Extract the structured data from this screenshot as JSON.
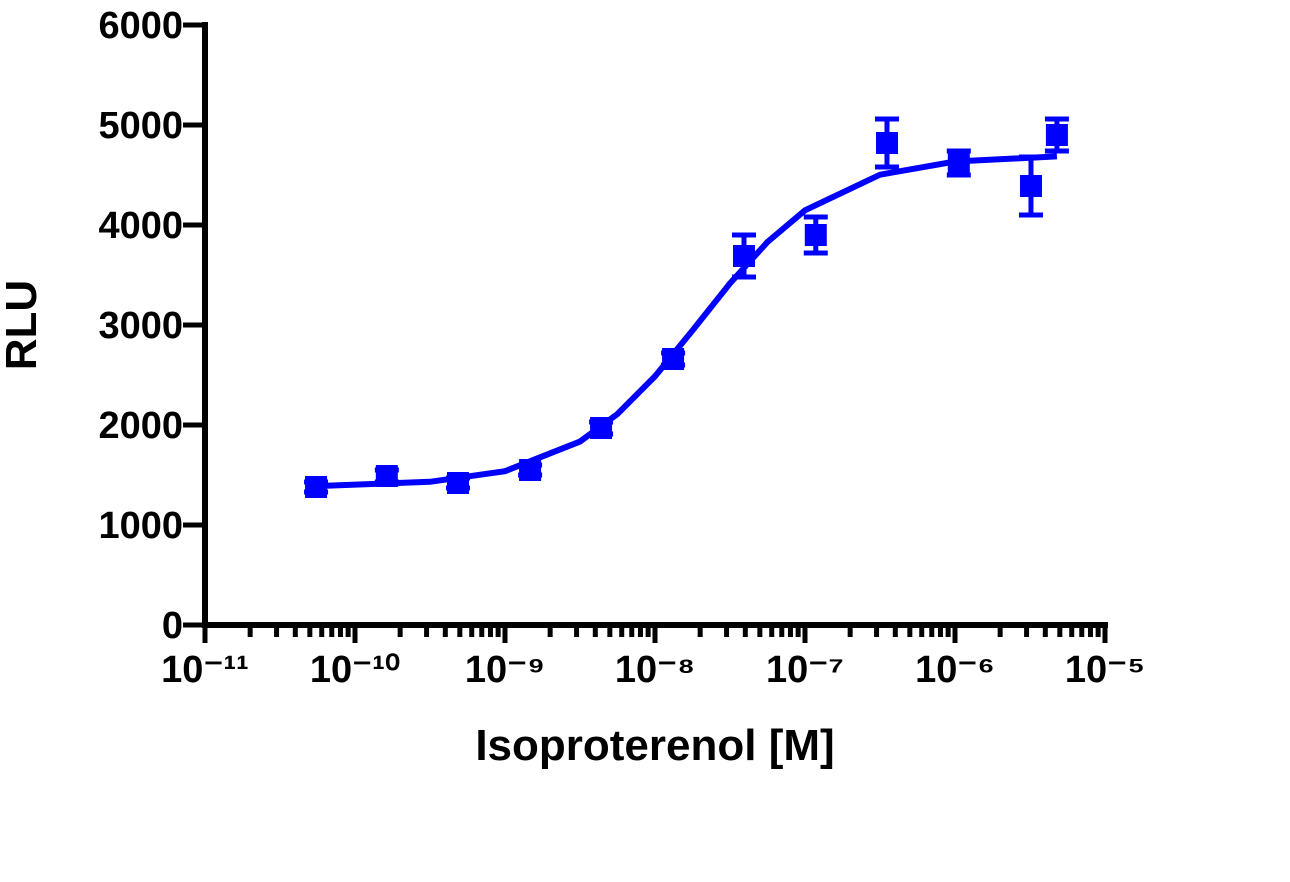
{
  "chart_data": {
    "type": "scatter",
    "x_label": "Isoproterenol [M]",
    "y_label": "RLU",
    "xscale": "log",
    "xlim": [
      1e-11,
      1e-05
    ],
    "xticks": [
      {
        "value": 1e-11,
        "label": "10⁻¹¹"
      },
      {
        "value": 1e-10,
        "label": "10⁻¹⁰"
      },
      {
        "value": 1e-09,
        "label": "10⁻⁹"
      },
      {
        "value": 1e-08,
        "label": "10⁻⁸"
      },
      {
        "value": 1e-07,
        "label": "10⁻⁷"
      },
      {
        "value": 1e-06,
        "label": "10⁻⁶"
      },
      {
        "value": 1e-05,
        "label": "10⁻⁵"
      }
    ],
    "ylim": [
      0,
      6000
    ],
    "yticks": [
      0,
      1000,
      2000,
      3000,
      4000,
      5000,
      6000
    ],
    "x": [
      5.5e-11,
      1.63e-10,
      4.86e-10,
      1.47e-09,
      4.37e-09,
      1.32e-08,
      3.92e-08,
      1.18e-07,
      3.52e-07,
      1.06e-06,
      3.21e-06,
      4.78e-06
    ],
    "series": [
      {
        "color": "#0000ff",
        "values": [
          1380,
          1490,
          1420,
          1550,
          1970,
          2660,
          3690,
          3900,
          4820,
          4620,
          4390,
          4900
        ],
        "errors": [
          50,
          60,
          50,
          50,
          60,
          60,
          210,
          180,
          240,
          120,
          290,
          160
        ]
      }
    ],
    "curve": {
      "color": "#0000ff",
      "x": [
        5.5e-11,
        3.16e-10,
        1e-09,
        3.16e-09,
        5.62e-09,
        1e-08,
        1.78e-08,
        3.16e-08,
        5.62e-08,
        1e-07,
        3.16e-07,
        1e-06,
        4.78e-06
      ],
      "values": [
        1389,
        1432,
        1538,
        1834,
        2110,
        2487,
        2946,
        3416,
        3830,
        4147,
        4503,
        4635,
        4686
      ]
    }
  }
}
